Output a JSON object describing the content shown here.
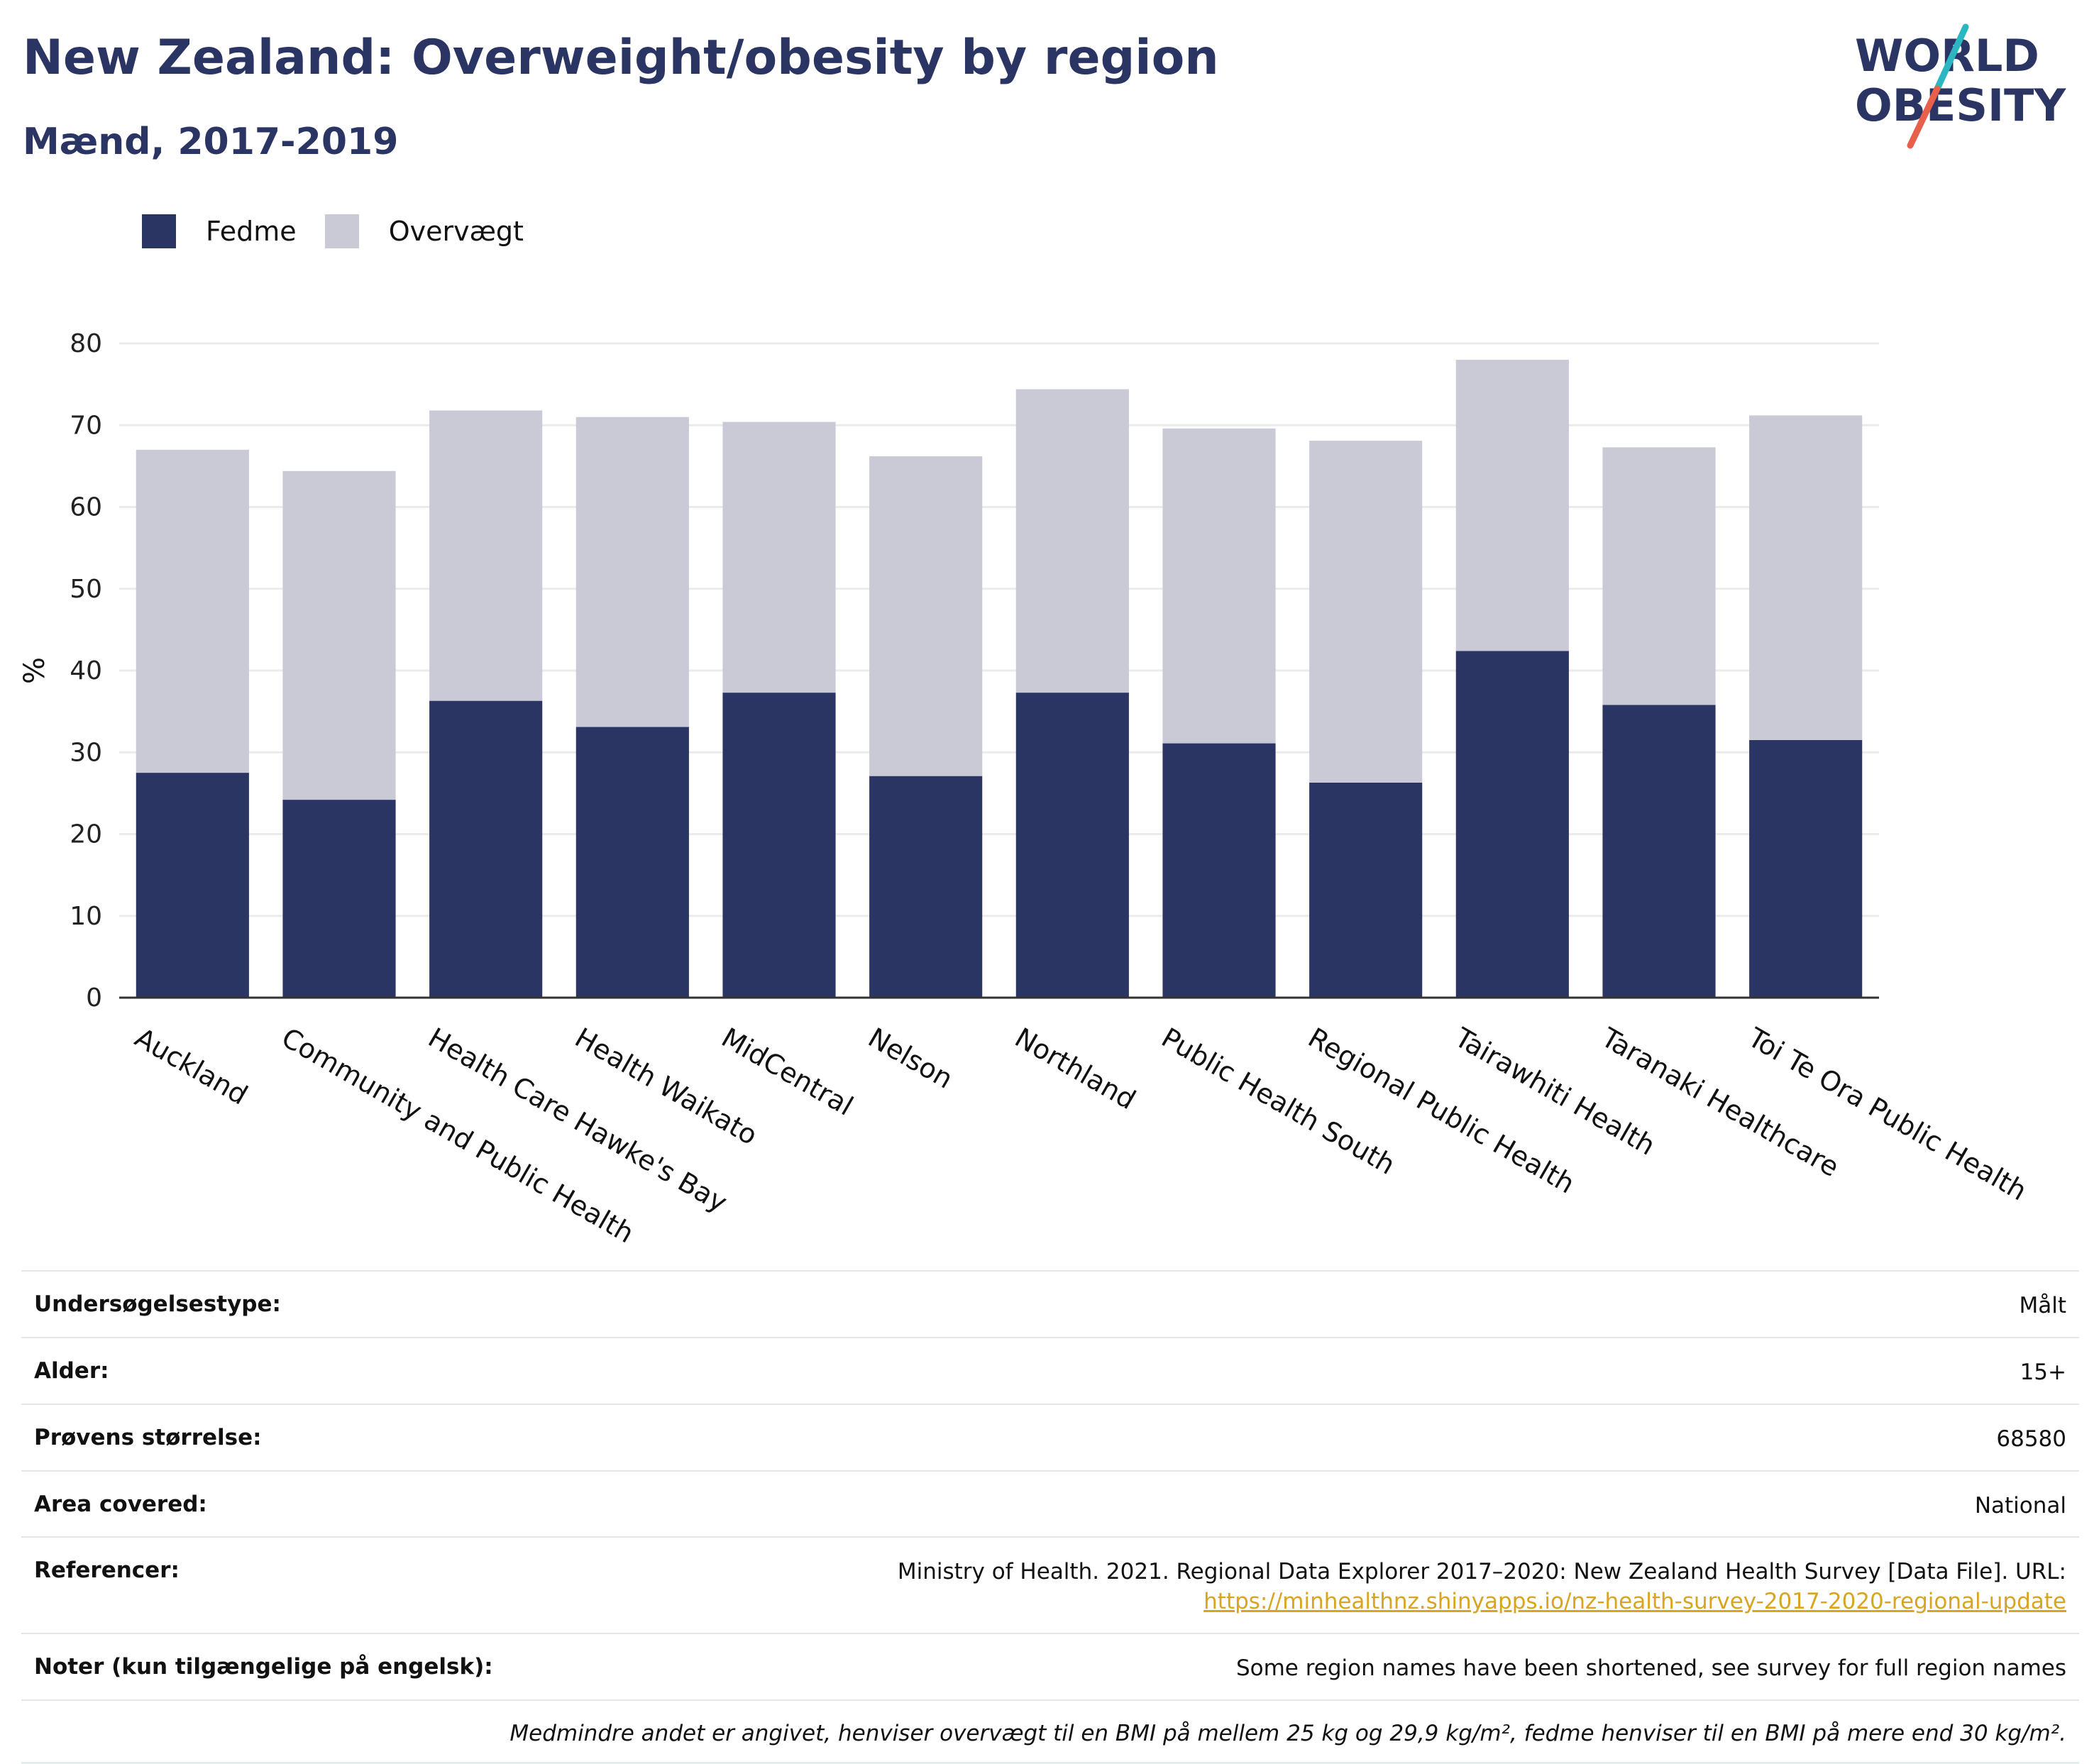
{
  "header": {
    "title": "New Zealand: Overweight/obesity by region",
    "subtitle": "Mænd, 2017-2019"
  },
  "logo": {
    "line1": "WORLD",
    "line2": "OBESITY"
  },
  "colors": {
    "fedme": "#2b3563",
    "overvaegt": "#c9cad6",
    "accent_teal": "#2bb7c2",
    "accent_red": "#e8604c"
  },
  "chart_data": {
    "type": "bar",
    "stacked": true,
    "ylabel": "%",
    "xlabel": "",
    "ylim": [
      0,
      80
    ],
    "yticks": [
      0,
      10,
      20,
      30,
      40,
      50,
      60,
      70,
      80
    ],
    "grid": true,
    "legend_position": "top-left",
    "categories": [
      "Auckland",
      "Community and Public Health",
      "Health Care Hawke's Bay",
      "Health Waikato",
      "MidCentral",
      "Nelson",
      "Northland",
      "Public Health South",
      "Regional Public Health",
      "Tairawhiti Health",
      "Taranaki Healthcare",
      "Toi Te Ora Public Health"
    ],
    "series": [
      {
        "name": "Fedme",
        "values": [
          27.5,
          24.2,
          36.3,
          33.1,
          37.3,
          27.1,
          37.3,
          31.1,
          26.3,
          42.4,
          35.8,
          31.5
        ]
      },
      {
        "name": "Overvægt",
        "values": [
          39.5,
          40.2,
          35.5,
          37.9,
          33.1,
          39.1,
          37.1,
          38.5,
          41.8,
          35.6,
          31.5,
          39.7
        ]
      }
    ]
  },
  "info": {
    "rows": [
      {
        "label": "Undersøgelsestype:",
        "value": "Målt"
      },
      {
        "label": "Alder:",
        "value": "15+"
      },
      {
        "label": "Prøvens størrelse:",
        "value": "68580"
      },
      {
        "label": "Area covered:",
        "value": "National"
      }
    ],
    "references": {
      "label": "Referencer:",
      "text": "Ministry of Health. 2021. Regional Data Explorer 2017–2020: New Zealand Health Survey [Data File]. URL:",
      "link": "https://minhealthnz.shinyapps.io/nz-health-survey-2017-2020-regional-update"
    },
    "notes": {
      "label": "Noter (kun tilgængelige på engelsk):",
      "value": "Some region names have been shortened, see survey for full region names"
    },
    "footnote": "Medmindre andet er angivet, henviser overvægt til en BMI på mellem 25 kg og 29,9 kg/m², fedme henviser til en BMI på mere end 30 kg/m²."
  }
}
